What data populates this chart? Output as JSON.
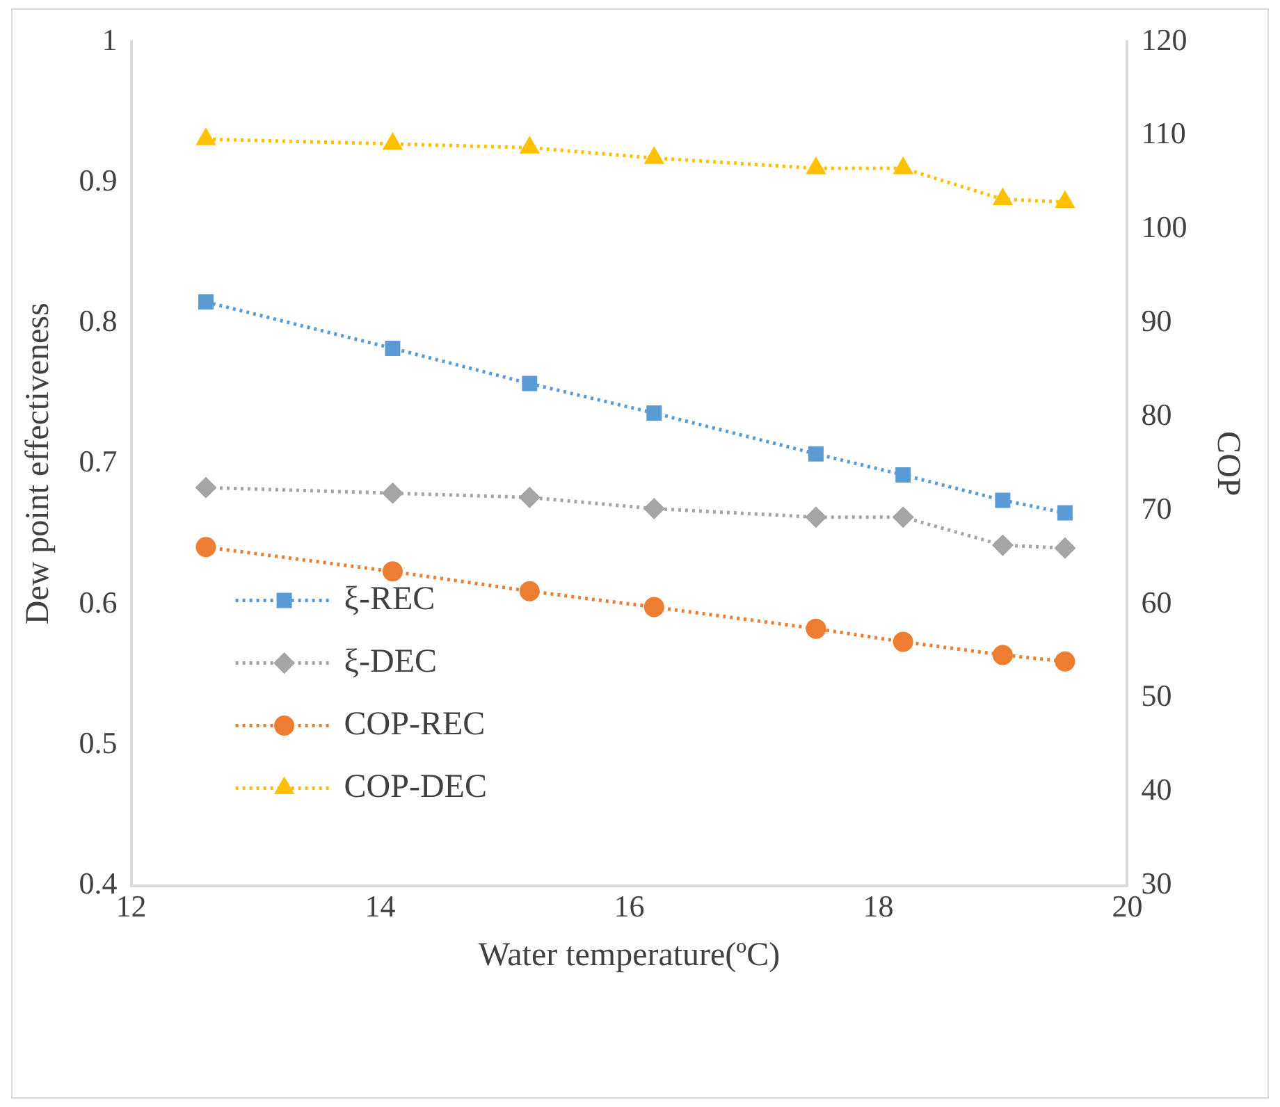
{
  "chart_data": {
    "type": "line",
    "xlabel": "Water temperature(ºC)",
    "ylabel": "Dew point effectiveness",
    "y2label": "COP",
    "x": [
      12.6,
      14.1,
      15.2,
      16.2,
      17.5,
      18.2,
      19.0,
      19.5
    ],
    "xlim": [
      12,
      20
    ],
    "xticks": [
      12,
      14,
      16,
      18,
      20
    ],
    "ylim": [
      0.4,
      1
    ],
    "yticks": [
      0.4,
      0.5,
      0.6,
      0.7,
      0.8,
      0.9,
      1
    ],
    "y2lim": [
      30,
      120
    ],
    "y2ticks": [
      30,
      40,
      50,
      60,
      70,
      80,
      90,
      100,
      110,
      120
    ],
    "grid": false,
    "legend": "bottom left",
    "line_style": "dotted",
    "series": [
      {
        "name": "ξ-REC",
        "color": "#5b9bd5",
        "marker": "square",
        "values": [
          0.815,
          0.782,
          0.757,
          0.736,
          0.707,
          0.692,
          0.674,
          0.665
        ]
      },
      {
        "name": "ξ-DEC",
        "color": "#a5a5a5",
        "marker": "diamond",
        "values": [
          0.683,
          0.679,
          0.676,
          0.668,
          0.662,
          0.662,
          0.642,
          0.64
        ]
      },
      {
        "name": "COP-REC",
        "color": "#ed7d31",
        "marker": "circle",
        "axis": "y2",
        "values": [
          66.1,
          63.5,
          61.4,
          59.7,
          57.4,
          56.0,
          54.6,
          53.9
        ]
      },
      {
        "name": "COP-DEC",
        "color": "#ffc000",
        "marker": "triangle",
        "axis": "y2",
        "values": [
          109.6,
          109.1,
          108.7,
          107.6,
          106.5,
          106.5,
          103.2,
          102.9
        ]
      }
    ]
  }
}
